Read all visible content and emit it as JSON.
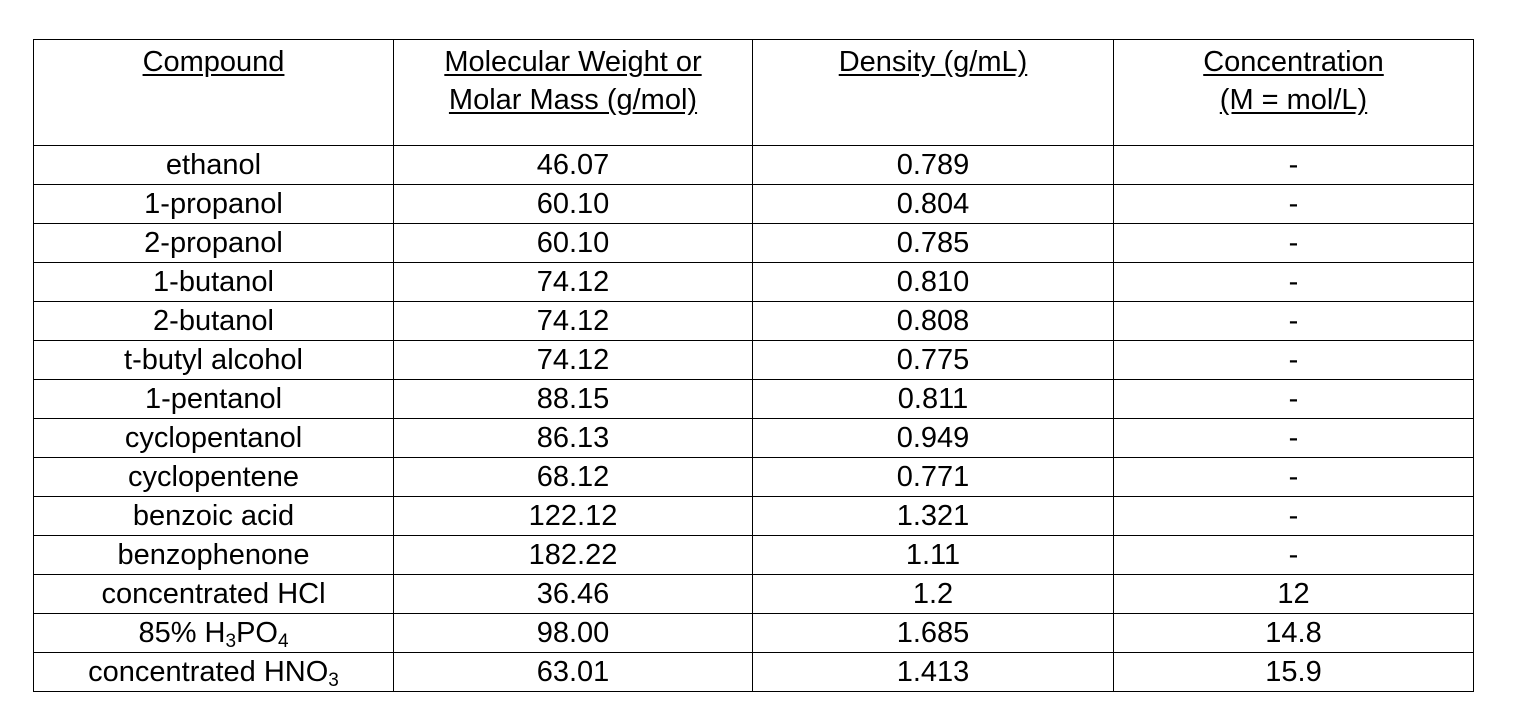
{
  "headers": {
    "compound": "Compound",
    "mw_line1": "Molecular Weight or",
    "mw_line2": "Molar Mass (g/mol)",
    "density": "Density (g/mL)",
    "conc_line1": "Concentration",
    "conc_line2": "(M = mol/L)"
  },
  "rows": [
    {
      "compound": "ethanol",
      "mw": "46.07",
      "density": "0.789",
      "conc": "-"
    },
    {
      "compound": "1-propanol",
      "mw": "60.10",
      "density": "0.804",
      "conc": "-"
    },
    {
      "compound": "2-propanol",
      "mw": "60.10",
      "density": "0.785",
      "conc": "-"
    },
    {
      "compound": "1-butanol",
      "mw": "74.12",
      "density": "0.810",
      "conc": "-"
    },
    {
      "compound": "2-butanol",
      "mw": "74.12",
      "density": "0.808",
      "conc": "-"
    },
    {
      "compound": "t-butyl alcohol",
      "mw": "74.12",
      "density": "0.775",
      "conc": "-"
    },
    {
      "compound": "1-pentanol",
      "mw": "88.15",
      "density": "0.811",
      "conc": "-"
    },
    {
      "compound": "cyclopentanol",
      "mw": "86.13",
      "density": "0.949",
      "conc": "-"
    },
    {
      "compound": "cyclopentene",
      "mw": "68.12",
      "density": "0.771",
      "conc": "-"
    },
    {
      "compound": "benzoic acid",
      "mw": "122.12",
      "density": "1.321",
      "conc": "-"
    },
    {
      "compound": "benzophenone",
      "mw": "182.22",
      "density": "1.11",
      "conc": "-"
    },
    {
      "compound": "concentrated HCl",
      "mw": "36.46",
      "density": "1.2",
      "conc": "12"
    },
    {
      "compound_prefix": "85% H",
      "sub1": "3",
      "compound_mid": "PO",
      "sub2": "4",
      "mw": "98.00",
      "density": "1.685",
      "conc": "14.8"
    },
    {
      "compound_prefix": "concentrated HNO",
      "sub1": "3",
      "mw": "63.01",
      "density": "1.413",
      "conc": "15.9"
    }
  ]
}
